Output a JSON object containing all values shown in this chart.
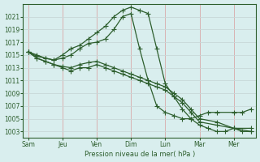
{
  "xlabel": "Pression niveau de la mer( hPa )",
  "ylim": [
    1002,
    1023
  ],
  "yticks": [
    1003,
    1005,
    1007,
    1009,
    1011,
    1013,
    1015,
    1017,
    1019,
    1021
  ],
  "xtick_labels": [
    "Sam",
    "Jeu",
    "Ven",
    "Dim",
    "Lun",
    "Mar",
    "Mer"
  ],
  "xtick_positions": [
    0,
    2,
    4,
    6,
    8,
    10,
    12
  ],
  "background_color": "#d9eeee",
  "grid_color_h": "#c8d8d8",
  "grid_color_v": "#e8b8b8",
  "line_color": "#2d5e2d",
  "marker": "+",
  "marker_size": 4.0,
  "line_width": 0.9,
  "xlim": [
    -0.3,
    13.3
  ],
  "lines": {
    "line1_x": [
      0,
      0.5,
      1.0,
      1.5,
      2.0,
      2.5,
      3.0,
      3.5,
      4.0,
      4.5,
      5.0,
      5.5,
      6.0,
      6.5,
      7.0,
      7.5,
      8.0,
      8.5,
      9.0,
      9.5,
      10.0,
      10.5,
      11.0,
      11.5,
      12.0,
      12.5,
      13.0
    ],
    "line1_y": [
      1015.5,
      1014.8,
      1014.5,
      1014.2,
      1015.0,
      1016.0,
      1016.5,
      1017.5,
      1018.5,
      1019.5,
      1021.0,
      1022.0,
      1022.5,
      1022.0,
      1021.5,
      1016.0,
      1010.5,
      1008.5,
      1006.5,
      1005.0,
      1004.0,
      1003.5,
      1003.0,
      1003.0,
      1003.5,
      1003.0,
      1003.0
    ],
    "line2_x": [
      0,
      0.5,
      1.0,
      1.5,
      2.0,
      2.5,
      3.0,
      3.5,
      4.0,
      4.5,
      5.0,
      5.5,
      6.0,
      6.5,
      7.0,
      7.5,
      8.0,
      8.5,
      9.0,
      9.5,
      10.0,
      10.5,
      11.0,
      12.0,
      12.5,
      13.0
    ],
    "line2_y": [
      1015.5,
      1015.0,
      1014.5,
      1014.2,
      1014.5,
      1015.0,
      1016.0,
      1016.8,
      1017.0,
      1017.5,
      1019.0,
      1021.0,
      1021.5,
      1016.0,
      1011.0,
      1007.0,
      1006.0,
      1005.5,
      1005.0,
      1005.0,
      1005.5,
      1006.0,
      1006.0,
      1006.0,
      1006.0,
      1006.5
    ],
    "line3_x": [
      0,
      0.5,
      1.0,
      1.5,
      2.0,
      2.5,
      3.0,
      3.5,
      4.0,
      4.5,
      5.0,
      5.5,
      6.0,
      6.5,
      7.0,
      7.5,
      8.0,
      8.5,
      9.0,
      9.5,
      10.0,
      11.0,
      12.0,
      13.0
    ],
    "line3_y": [
      1015.5,
      1014.5,
      1014.0,
      1013.5,
      1013.2,
      1013.0,
      1013.5,
      1013.8,
      1014.0,
      1013.5,
      1013.0,
      1012.5,
      1012.0,
      1011.5,
      1011.0,
      1010.5,
      1010.0,
      1009.0,
      1008.0,
      1006.5,
      1005.0,
      1004.5,
      1003.5,
      1003.5
    ],
    "line4_x": [
      0,
      0.5,
      1.0,
      1.5,
      2.0,
      2.5,
      3.0,
      3.5,
      4.0,
      4.5,
      5.0,
      5.5,
      6.0,
      6.5,
      7.0,
      7.5,
      8.0,
      8.5,
      9.0,
      9.5,
      10.0,
      11.0,
      12.0,
      13.0
    ],
    "line4_y": [
      1015.5,
      1014.5,
      1014.0,
      1013.5,
      1013.0,
      1012.5,
      1013.0,
      1013.0,
      1013.5,
      1013.0,
      1012.5,
      1012.0,
      1011.5,
      1011.0,
      1010.5,
      1010.0,
      1009.5,
      1008.5,
      1007.5,
      1006.0,
      1004.5,
      1004.0,
      1003.5,
      1003.0
    ]
  }
}
